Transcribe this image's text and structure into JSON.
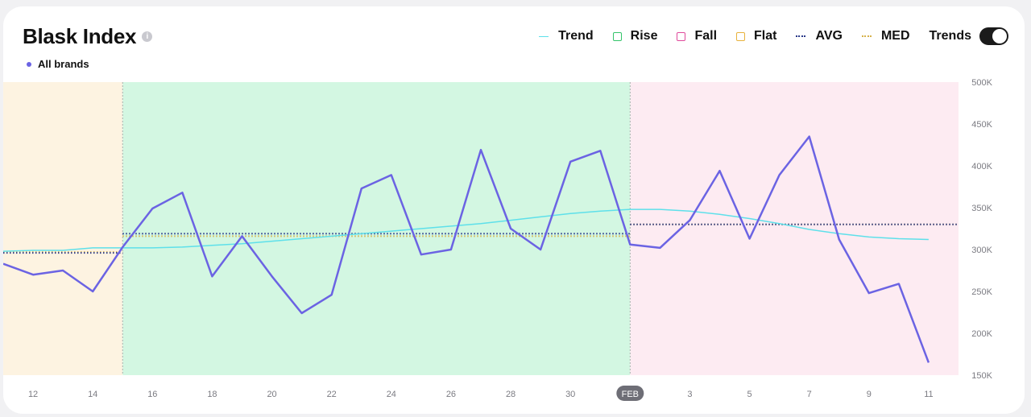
{
  "header": {
    "title": "Blask Index",
    "info_icon": "i",
    "brand_label": "All brands",
    "brand_color": "#6b63e3"
  },
  "legend": {
    "trend": {
      "label": "Trend",
      "color": "#5ee0ea"
    },
    "rise": {
      "label": "Rise",
      "color": "#34c46a"
    },
    "fall": {
      "label": "Fall",
      "color": "#e04a9c"
    },
    "flat": {
      "label": "Flat",
      "color": "#e8b23c"
    },
    "avg": {
      "label": "AVG",
      "color": "#2b3a8a"
    },
    "med": {
      "label": "MED",
      "color": "#d6b24a"
    },
    "trends_toggle": {
      "label": "Trends",
      "on": true
    }
  },
  "chart_data": {
    "type": "line",
    "title": "Blask Index",
    "x": [
      "Jan 11",
      "Jan 12",
      "Jan 13",
      "Jan 14",
      "Jan 15",
      "Jan 16",
      "Jan 17",
      "Jan 18",
      "Jan 19",
      "Jan 20",
      "Jan 21",
      "Jan 22",
      "Jan 23",
      "Jan 24",
      "Jan 25",
      "Jan 26",
      "Jan 27",
      "Jan 28",
      "Jan 29",
      "Jan 30",
      "Jan 31",
      "Feb 1",
      "Feb 2",
      "Feb 3",
      "Feb 4",
      "Feb 5",
      "Feb 6",
      "Feb 7",
      "Feb 8",
      "Feb 9",
      "Feb 10",
      "Feb 11",
      "Feb 12"
    ],
    "x_tick_labels": [
      "12",
      "14",
      "16",
      "18",
      "20",
      "22",
      "24",
      "26",
      "28",
      "30",
      "FEB",
      "3",
      "5",
      "7",
      "9",
      "11"
    ],
    "x_tick_positions": [
      "Jan 12",
      "Jan 14",
      "Jan 16",
      "Jan 18",
      "Jan 20",
      "Jan 22",
      "Jan 24",
      "Jan 26",
      "Jan 28",
      "Jan 30",
      "Feb 1",
      "Feb 3",
      "Feb 5",
      "Feb 7",
      "Feb 9",
      "Feb 11"
    ],
    "highlight_tick": "FEB",
    "y_tick_labels": [
      "500K",
      "450K",
      "400K",
      "350K",
      "300K",
      "250K",
      "200K",
      "150K"
    ],
    "y_ticks": [
      500000,
      450000,
      400000,
      350000,
      300000,
      250000,
      200000,
      150000
    ],
    "ylim": [
      150000,
      500000
    ],
    "grid": false,
    "legend_position": "top-right",
    "series": [
      {
        "name": "All brands",
        "color": "#6b63e3",
        "values": [
          283000,
          270000,
          275000,
          250000,
          303000,
          349000,
          368000,
          268000,
          316000,
          268000,
          224000,
          246000,
          373000,
          389000,
          294000,
          300000,
          419000,
          325000,
          300000,
          405000,
          418000,
          306000,
          302000,
          335000,
          394000,
          313000,
          389000,
          435000,
          312000,
          248000,
          259000,
          165000,
          null
        ]
      }
    ],
    "trend": {
      "name": "Trend",
      "color": "#5ee0ea",
      "values": [
        298000,
        299000,
        299000,
        302000,
        302000,
        302000,
        303000,
        305000,
        307000,
        310000,
        313000,
        316000,
        319000,
        322000,
        325000,
        328000,
        331000,
        335000,
        339000,
        343000,
        346000,
        348000,
        348000,
        346000,
        342000,
        337000,
        331000,
        324000,
        319000,
        315000,
        313000,
        312000,
        null
      ]
    },
    "periods": [
      {
        "type": "flat",
        "start": "Jan 11",
        "end": "Jan 15",
        "fill": "#fdf3e1",
        "avg": 296000,
        "med": 297000
      },
      {
        "type": "rise",
        "start": "Jan 15",
        "end": "Feb 1",
        "fill": "#d3f7e2",
        "avg": 319000,
        "med": 316000
      },
      {
        "type": "fall",
        "start": "Feb 1",
        "end": "Feb 12",
        "fill": "#fdebf2",
        "avg": 330000,
        "med": 330000
      }
    ]
  }
}
